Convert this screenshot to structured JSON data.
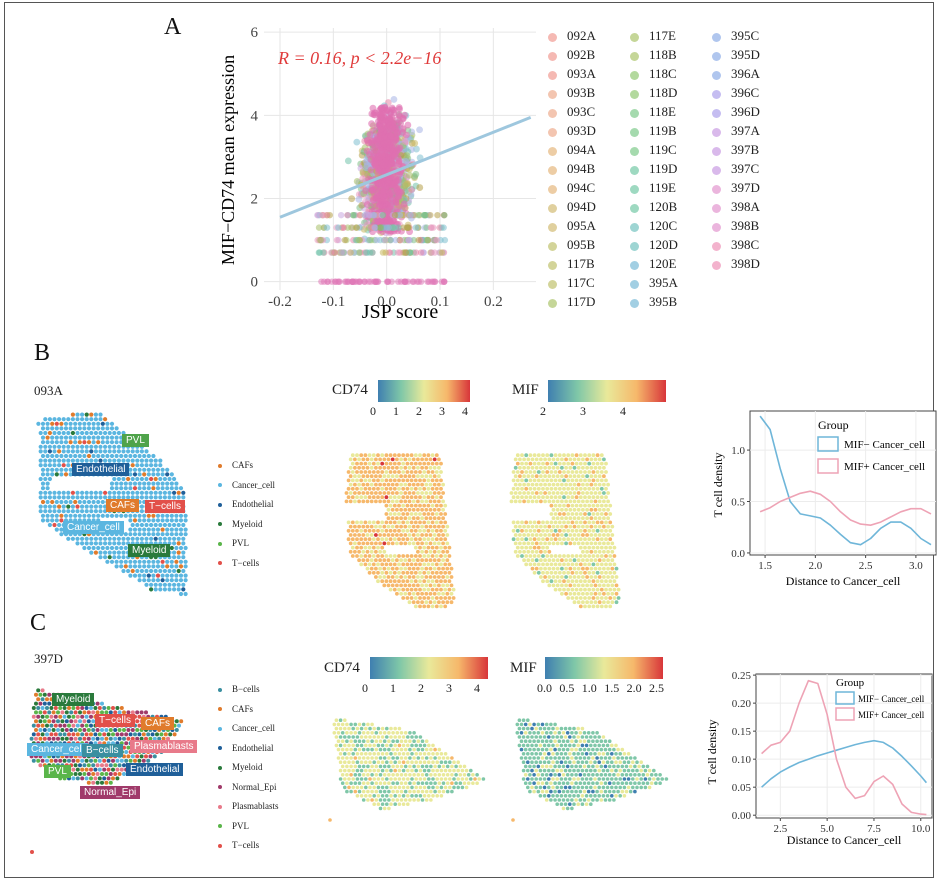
{
  "panel_labels": {
    "a": "A",
    "b": "B",
    "c": "C"
  },
  "sample_labels": {
    "b": "093A",
    "c": "397D"
  },
  "colors": {
    "red_annot": "#e03a3a",
    "regression": "#9ec7de",
    "cancer_blue": "#5bb6e0"
  },
  "b_celltypes": [
    {
      "name": "CAFs",
      "color": "#e07b2c"
    },
    {
      "name": "Cancer_cell",
      "color": "#5bb6e0"
    },
    {
      "name": "Endothelial",
      "color": "#1f5f99"
    },
    {
      "name": "Myeloid",
      "color": "#2a7a3c"
    },
    {
      "name": "PVL",
      "color": "#5ab54a"
    },
    {
      "name": "T−cells",
      "color": "#e2504a"
    }
  ],
  "c_celltypes": [
    {
      "name": "B−cells",
      "color": "#3a8fa0"
    },
    {
      "name": "CAFs",
      "color": "#e07b2c"
    },
    {
      "name": "Cancer_cell",
      "color": "#5bb6e0"
    },
    {
      "name": "Endothelial",
      "color": "#1f5f99"
    },
    {
      "name": "Myeloid",
      "color": "#2a7a3c"
    },
    {
      "name": "Normal_Epi",
      "color": "#a03a6a"
    },
    {
      "name": "Plasmablasts",
      "color": "#e87a8a"
    },
    {
      "name": "PVL",
      "color": "#5ab54a"
    },
    {
      "name": "T−cells",
      "color": "#e2504a"
    }
  ],
  "b_cbar": {
    "cd74_label": "CD74",
    "cd74_ticks": [
      "0",
      "1",
      "2",
      "3",
      "4"
    ],
    "mif_label": "MIF",
    "mif_ticks": [
      "2",
      "3",
      "4"
    ]
  },
  "c_cbar": {
    "cd74_label": "CD74",
    "cd74_ticks": [
      "0",
      "1",
      "2",
      "3",
      "4"
    ],
    "mif_label": "MIF",
    "mif_ticks": [
      "0.0",
      "0.5",
      "1.0",
      "1.5",
      "2.0",
      "2.5"
    ]
  },
  "chart_data": [
    {
      "type": "scatter",
      "xlabel": "JSP score",
      "ylabel": "MIF−CD74 mean expression",
      "xlim": [
        -0.23,
        0.28
      ],
      "ylim": [
        -0.2,
        6.1
      ],
      "xticks": [
        "-0.2",
        "-0.1",
        "0.0",
        "0.1",
        "0.2"
      ],
      "yticks": [
        "0",
        "2",
        "4",
        "6"
      ],
      "annotation": "R = 0.16, p < 2.2e−16",
      "regression": {
        "x": [
          -0.2,
          0.27
        ],
        "y": [
          1.55,
          3.95
        ]
      },
      "grid": true,
      "legend_placement": "right",
      "series": [
        {
          "name": "092A"
        },
        {
          "name": "092B"
        },
        {
          "name": "093A"
        },
        {
          "name": "093B"
        },
        {
          "name": "093C"
        },
        {
          "name": "093D"
        },
        {
          "name": "094A"
        },
        {
          "name": "094B"
        },
        {
          "name": "094C"
        },
        {
          "name": "094D"
        },
        {
          "name": "095A"
        },
        {
          "name": "095B"
        },
        {
          "name": "117B"
        },
        {
          "name": "117C"
        },
        {
          "name": "117D"
        },
        {
          "name": "117E"
        },
        {
          "name": "118B"
        },
        {
          "name": "118C"
        },
        {
          "name": "118D"
        },
        {
          "name": "118E"
        },
        {
          "name": "119B"
        },
        {
          "name": "119C"
        },
        {
          "name": "119D"
        },
        {
          "name": "119E"
        },
        {
          "name": "120B"
        },
        {
          "name": "120C"
        },
        {
          "name": "120D"
        },
        {
          "name": "120E"
        },
        {
          "name": "395A"
        },
        {
          "name": "395B"
        },
        {
          "name": "395C"
        },
        {
          "name": "395D"
        },
        {
          "name": "396A"
        },
        {
          "name": "396C"
        },
        {
          "name": "396D"
        },
        {
          "name": "397A"
        },
        {
          "name": "397B"
        },
        {
          "name": "397C"
        },
        {
          "name": "397D"
        },
        {
          "name": "398A"
        },
        {
          "name": "398B"
        },
        {
          "name": "398C"
        },
        {
          "name": "398D"
        }
      ]
    },
    {
      "type": "line",
      "xlabel": "Distance to Cancer_cell",
      "ylabel": "T cell density",
      "xlim": [
        1.35,
        3.2
      ],
      "ylim": [
        -0.02,
        1.38
      ],
      "xticks": [
        "1.5",
        "2.0",
        "2.5",
        "3.0"
      ],
      "yticks": [
        "0.0",
        "0.5",
        "1.0"
      ],
      "legend_title": "Group",
      "legend_placement": "top-right",
      "series": [
        {
          "name": "MIF− Cancer_cell",
          "color": "#6fb6d9",
          "x": [
            1.45,
            1.55,
            1.65,
            1.75,
            1.85,
            1.95,
            2.05,
            2.15,
            2.25,
            2.35,
            2.45,
            2.55,
            2.65,
            2.75,
            2.85,
            2.95,
            3.05,
            3.15
          ],
          "y": [
            1.33,
            1.2,
            0.82,
            0.5,
            0.38,
            0.36,
            0.34,
            0.27,
            0.18,
            0.1,
            0.08,
            0.14,
            0.24,
            0.3,
            0.3,
            0.24,
            0.14,
            0.08
          ]
        },
        {
          "name": "MIF+ Cancer_cell",
          "color": "#eea3b5",
          "x": [
            1.45,
            1.55,
            1.65,
            1.75,
            1.85,
            1.95,
            2.05,
            2.15,
            2.25,
            2.35,
            2.45,
            2.55,
            2.65,
            2.75,
            2.85,
            2.95,
            3.05,
            3.15
          ],
          "y": [
            0.4,
            0.44,
            0.5,
            0.54,
            0.58,
            0.6,
            0.57,
            0.5,
            0.4,
            0.32,
            0.28,
            0.27,
            0.3,
            0.35,
            0.4,
            0.43,
            0.43,
            0.38
          ]
        }
      ]
    },
    {
      "type": "line",
      "xlabel": "Distance to Cancer_cell",
      "ylabel": "T cell density",
      "xlim": [
        1.2,
        10.6
      ],
      "ylim": [
        -0.005,
        0.252
      ],
      "xticks": [
        "2.5",
        "5.0",
        "7.5",
        "10.0"
      ],
      "yticks": [
        "0.00",
        "0.05",
        "0.10",
        "0.15",
        "0.20",
        "0.25"
      ],
      "legend_title": "Group",
      "legend_placement": "top-right",
      "series": [
        {
          "name": "MIF− Cancer_cell",
          "color": "#6fb6d9",
          "x": [
            1.5,
            2,
            2.5,
            3,
            3.5,
            4,
            4.5,
            5,
            5.5,
            6,
            6.5,
            7,
            7.5,
            8,
            8.5,
            9,
            9.5,
            10,
            10.3
          ],
          "y": [
            0.05,
            0.065,
            0.077,
            0.086,
            0.094,
            0.1,
            0.106,
            0.111,
            0.116,
            0.121,
            0.126,
            0.13,
            0.133,
            0.13,
            0.12,
            0.105,
            0.088,
            0.07,
            0.058
          ]
        },
        {
          "name": "MIF+ Cancer_cell",
          "color": "#eea3b5",
          "x": [
            1.5,
            2,
            2.5,
            3,
            3.5,
            4,
            4.5,
            5,
            5.5,
            6,
            6.5,
            7,
            7.5,
            8,
            8.5,
            9,
            9.5,
            10,
            10.3
          ],
          "y": [
            0.11,
            0.125,
            0.13,
            0.15,
            0.2,
            0.24,
            0.235,
            0.18,
            0.1,
            0.05,
            0.03,
            0.035,
            0.06,
            0.07,
            0.055,
            0.02,
            0.005,
            0.002,
            0.001
          ]
        }
      ]
    }
  ]
}
